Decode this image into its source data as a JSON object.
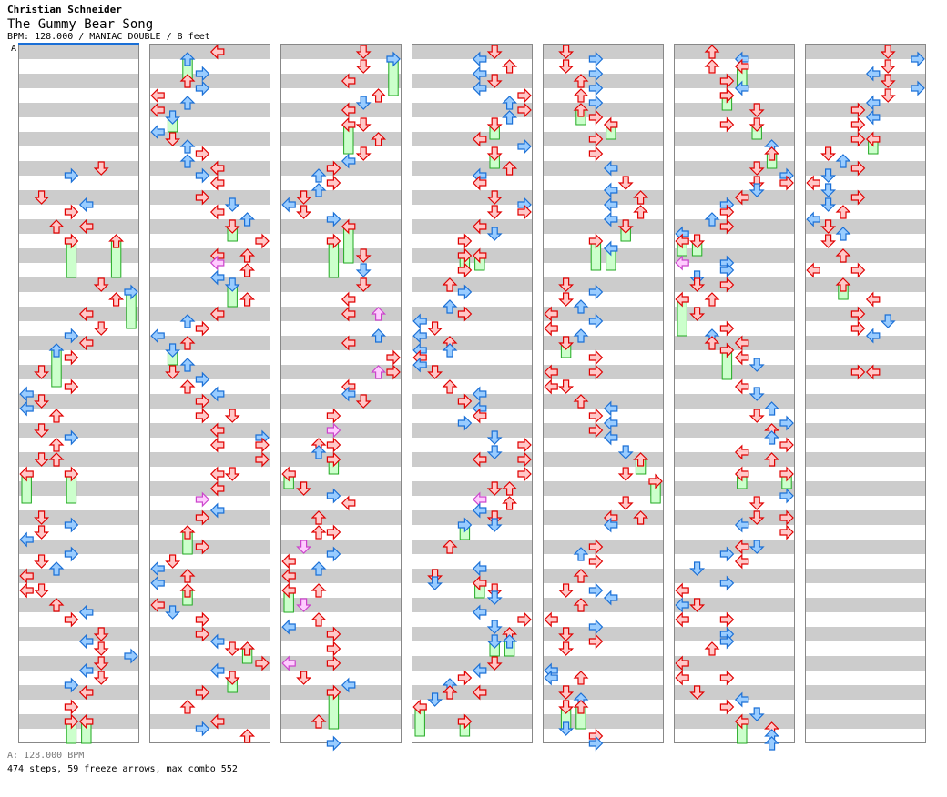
{
  "header": {
    "artist": "Christian Schneider",
    "title": "The Gummy Bear Song",
    "info": "BPM: 128.000 / MANIAC DOUBLE / 8 feet",
    "bpm_marker": "A"
  },
  "footer": {
    "bpm_line": "A: 128.000 BPM",
    "stats": "474 steps, 59 freeze arrows, max combo 552"
  },
  "colors": {
    "red": "#e00000",
    "red_fill": "#ffc8c8",
    "blue": "#1a6fd6",
    "blue_fill": "#99ccff",
    "pink": "#cc44cc",
    "pink_fill": "#ffccff",
    "freeze": "#22aa22",
    "freeze_fill": "#ccffcc"
  },
  "chart_data": {
    "type": "step-chart",
    "lanes": [
      "P1-left",
      "P1-down",
      "P1-up",
      "P1-right",
      "P2-left",
      "P2-down",
      "P2-up",
      "P2-right"
    ],
    "beats_per_column": 48,
    "note_format": "beat,lane,type[,freezeLengthBeats]  type: r=quarter(red) b=eighth(blue) p=sixteenth(pink)",
    "columns": [
      "8.5,3,b 8,5,r 10,1,r 10.5,4,b 11,3,r 12,2,r 12,4,r 13,3,r,2.5 13,6,r,2.5 16,5,r 17,6,r 16.5,7,b,2.5 18,4,r 19,5,r 19.5,3,b 20,4,r 20.5,2,b,2.5 21,3,r 22,1,r 23,3,r 23.5,0,b 24.5,0,b 24,1,r 25,2,r 26,1,r 26.5,3,b 27,2,r 28,1,r 28,2,r 29,0,r,2 29,3,r,2 32,1,r 32.5,3,b 33,1,r 33.5,0,b 34.5,3,b 35,1,r 35.5,2,b 36,0,r 37,0,r 37,1,r 38,2,r 38.5,4,b 39,3,r 40,5,r 40.5,4,b 41,5,r 41.5,7,b 42,5,r 42.5,4,b 43,5,r 43.5,3,b 44,4,r 45,3,r 46,3,r,1.5 46,4,r,1.5",
      "0,4,r 0.5,2,b,1.5 1.5,3,b 2,2,r 2.5,3,b 3,0,r 3.5,2,b 4,0,r 4.5,1,b,1 5.5,0,b 6,1,r 6.5,2,b 7,3,r 7.5,2,b 8,4,r 8.5,3,b 9,4,r 10,3,r 10.5,5,b 11,4,r 11.5,6,b 12,5,r,1 13,7,r 14,4,r 14.5,4,p 14,6,r 15,6,r 15.5,4,b 16,5,b,1.5 17,6,r 18,4,r 18.5,2,b 19,3,r 19.5,0,b 20,2,r 20.5,1,b,1 21.5,2,b 22,1,r 22.5,3,b 23,2,r 23.5,4,b 24,3,r 25,5,r 25,3,r 26,4,r 26.5,7,b 27,4,r 27,7,r 28,7,r 29,4,r 29,5,r 30,4,r 30.75,3,p 31.5,4,b 32,3,r 33,2,r,1.5 34,3,r 35,1,r 35.5,0,b 36,2,r 36.5,0,b 37,2,r,1 38,0,r 38.5,1,b 39,3,r 40,3,r 40.5,4,b 41,5,r 41,6,r,1 42,7,r 42.5,4,b 43,5,r,1 44,3,r 45,2,r 46,4,r 46.5,3,b 47,6,r",
      "0,5,r 1,5,r 0.5,7,b,2.5 2,4,r 3,6,r 3.5,5,b 4,4,r 5,5,r 5,4,r,2 6,6,r 7,5,r 7.5,4,b 8,3,r 8.5,2,b 9,3,r 9.5,2,b 10,1,r 10.5,0,b 11,1,r 11.5,3,b 12,4,r,2.5 13,3,r,2.5 14,5,r 15,5,b 16,5,r 17,4,r 18,4,r 18,6,p 19.5,6,b 20,4,r 21,7,r 22,6,p 22,7,r 23,4,r 23.5,4,b 24,5,r 25,3,r 26,3,p 27,3,r 27,2,r 27.5,2,b 28,3,r,1 29,0,r,1 30,1,r 30.5,3,b 31,4,r 32,2,r 33,2,r 33,3,r 34,1,p 34.5,3,b 35,0,r 35.5,2,b 36,0,r 37,2,r 37,0,r,1.5 38,1,p 39.5,0,b 39,2,r 40,3,r 41,3,r 42,0,p 42,3,r 43,1,r 43.5,4,b 44,3,r,2.5 46,2,r 47.5,3,b",
      "0,5,r 0.5,4,b 1,6,r 1.5,4,b 2,5,r 2.5,4,b 3,7,r 3.5,6,b 4,7,r 4.5,6,b 5,5,r,1 6,4,r 6.5,7,b 7,5,r,1 8,6,r 8.5,4,b 9,4,r 10,5,r 10.5,7,b 11,7,r 11,5,r 12,4,r 12.5,5,b 13,3,r 14,3,r,1 14,4,r,1 15,3,r 16,2,r 16.5,3,b 17.5,2,b 18,3,r 18.5,0,b 19,1,r 19.5,0,b 20,2,r 20.5,0,b 20.5,2,b 21,0,r 21.5,0,b 22,1,r 23,2,r 23.5,4,b 24,3,r 24.5,4,b 25,4,r 25.5,3,b 26.5,5,b 27.5,5,b 27,7,r 28,7,r 29,7,r 28,4,r 30,5,r 30.75,4,p 30,6,r 31,6,r 31.5,4,b 32,5,r 32.5,5,b 32.5,3,b,1 34,2,r 35.5,4,b 36,1,r 36.5,1,b 36.5,4,r,1 37,5,r 37.5,5,b 38.5,4,b 39,7,r 39.5,5,b 40,6,r 40.5,5,b,1 40.5,6,b,1 42,5,r 42.5,4,b 43,3,r 43.5,2,b 44,4,r 44,2,r 44.5,1,b 45,0,r,2 46,3,r,1",
      "0,1,r 0.5,3,b 1,1,r 1.5,3,b 2,2,r 2.5,3,b 3,2,r 3.5,3,b 4,2,r,1 4.5,3,r 5,4,r,1 6,3,r 7,3,r 8,4,b 9,5,r 9.5,4,b 10,6,r 10.5,4,b 11,6,r 11.5,4,b 12,5,r,1 13,3,r,2 13.5,4,b,1.5 16,1,r 16.5,3,b 17,1,r 17.5,2,b 18,0,r 18.5,3,b 19,0,r 19.5,2,b 20,1,r,1 21,3,r 22,0,r 22,3,r 23,0,r 23,1,r 24,2,r 24.5,4,b 25,3,r 25.5,4,b 26,3,r 26.5,4,b 27.5,5,b 28,6,r,1 29,5,r 29.5,7,r,1.5 31,5,r 32,4,r 32.5,4,b 32,6,r 34,3,r 34.5,2,b 35,3,r 36,2,r 37,1,r 37,3,b 37.5,4,b 38,2,r 39,0,r 39.5,3,b 40,1,r 40.5,3,r 41,1,r 42.5,0,b 43,0,b 43,2,r 44,1,r 44.5,2,b 45,1,r,1.5 45,2,r,1.5 46.5,1,b 47,3,r 47.5,3,b",
      "0,2,r 0.5,4,b 1,2,r 1,4,r,1.5 2,3,r 2.5,4,b 3,3,r 3,3,r,1 4,5,r 5,3,r 5,5,r,1 6.5,6,b 7,6,r,1 8,5,r 8.5,7,b 9,5,r 9.5,5,b 9,7,r 10,4,r 10.5,3,b 11,3,r 11.5,2,b 12,3,r 12.5,0,b 13,0,r,1 13,1,r,1 14.5,0,p 14.5,3,b 15,3,b 15.5,1,b 16,1,r 16,3,r 17,2,r 17,0,r,2.5 18,1,r 19,3,r 19.5,2,b 20,2,r 20,4,r 20.5,3,r,2 21,4,r 21.5,5,b 23,4,r 23.5,5,b 24.5,6,b 25,5,r 25.5,7,b 26,6,r 26.5,6,b 27,7,r 27.5,4,r 28,6,r 29,4,r,1 29,7,r,1 30.5,7,b 31,5,r 32,5,r 32.5,4,b 32,7,r 33,7,r 34,4,r 34,5,b 34.5,3,b 35,4,r 35.5,1,b 36.5,3,b 37,0,r 38,1,r 38,0,b 39,0,r 39,3,r 40,3,b 40.5,3,b 41,2,r 42,0,r 43,0,r 43,3,r 44,1,r 44.5,4,b 45,3,r 45.5,5,b 46,4,r,1.5 46.5,6,r 47,6,b 47.5,6,b",
      "0,5,r 0.5,7,b 1,5,r 1.5,4,b 2,5,r 2.5,7,b 3,5,r 3.5,4,b 4,3,r 4.5,4,b 5,3,r 6,3,r 6,4,r,1 7,1,r 7.5,2,b 8,3,r 8.5,1,b 9,0,r 9.5,1,b 10,3,r 10.5,1,b 11,2,r 11.5,0,b 12,1,r 12.5,2,b 13,1,r 14,2,r 15,0,r 15,3,r 16,2,r,1 17,4,r 18,3,r 18.5,5,b 19,3,r 19.5,4,b 22,3,r 22,4,r",
      ""
    ]
  }
}
